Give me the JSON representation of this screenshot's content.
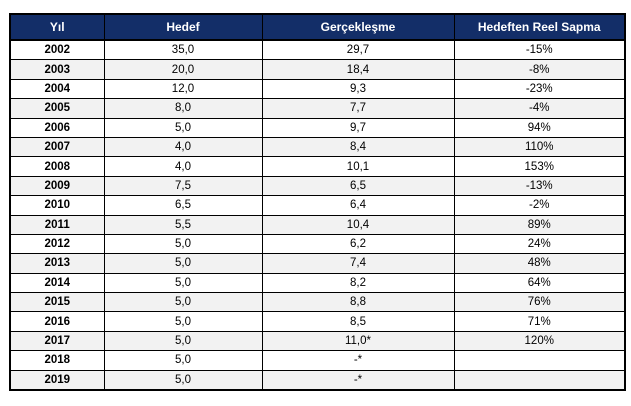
{
  "table": {
    "columns": {
      "yil": "Yıl",
      "hedef": "Hedef",
      "gerceklesme": "Gerçekleşme",
      "sapma": "Hedeften Reel Sapma"
    },
    "rows": [
      {
        "yil": "2002",
        "hedef": "35,0",
        "gerceklesme": "29,7",
        "sapma": "-15%"
      },
      {
        "yil": "2003",
        "hedef": "20,0",
        "gerceklesme": "18,4",
        "sapma": "-8%"
      },
      {
        "yil": "2004",
        "hedef": "12,0",
        "gerceklesme": "9,3",
        "sapma": "-23%"
      },
      {
        "yil": "2005",
        "hedef": "8,0",
        "gerceklesme": "7,7",
        "sapma": "-4%"
      },
      {
        "yil": "2006",
        "hedef": "5,0",
        "gerceklesme": "9,7",
        "sapma": "94%"
      },
      {
        "yil": "2007",
        "hedef": "4,0",
        "gerceklesme": "8,4",
        "sapma": "110%"
      },
      {
        "yil": "2008",
        "hedef": "4,0",
        "gerceklesme": "10,1",
        "sapma": "153%"
      },
      {
        "yil": "2009",
        "hedef": "7,5",
        "gerceklesme": "6,5",
        "sapma": "-13%"
      },
      {
        "yil": "2010",
        "hedef": "6,5",
        "gerceklesme": "6,4",
        "sapma": "-2%"
      },
      {
        "yil": "2011",
        "hedef": "5,5",
        "gerceklesme": "10,4",
        "sapma": "89%"
      },
      {
        "yil": "2012",
        "hedef": "5,0",
        "gerceklesme": "6,2",
        "sapma": "24%"
      },
      {
        "yil": "2013",
        "hedef": "5,0",
        "gerceklesme": "7,4",
        "sapma": "48%"
      },
      {
        "yil": "2014",
        "hedef": "5,0",
        "gerceklesme": "8,2",
        "sapma": "64%"
      },
      {
        "yil": "2015",
        "hedef": "5,0",
        "gerceklesme": "8,8",
        "sapma": "76%"
      },
      {
        "yil": "2016",
        "hedef": "5,0",
        "gerceklesme": "8,5",
        "sapma": "71%"
      },
      {
        "yil": "2017",
        "hedef": "5,0",
        "gerceklesme": "11,0*",
        "sapma": "120%"
      },
      {
        "yil": "2018",
        "hedef": "5,0",
        "gerceklesme": "-*",
        "sapma": ""
      },
      {
        "yil": "2019",
        "hedef": "5,0",
        "gerceklesme": "-*",
        "sapma": ""
      }
    ]
  },
  "colors": {
    "header_bg": "#132E68",
    "header_text": "#FFFFFF",
    "row_alt_bg": "#F2F2F2",
    "border": "#000000"
  }
}
